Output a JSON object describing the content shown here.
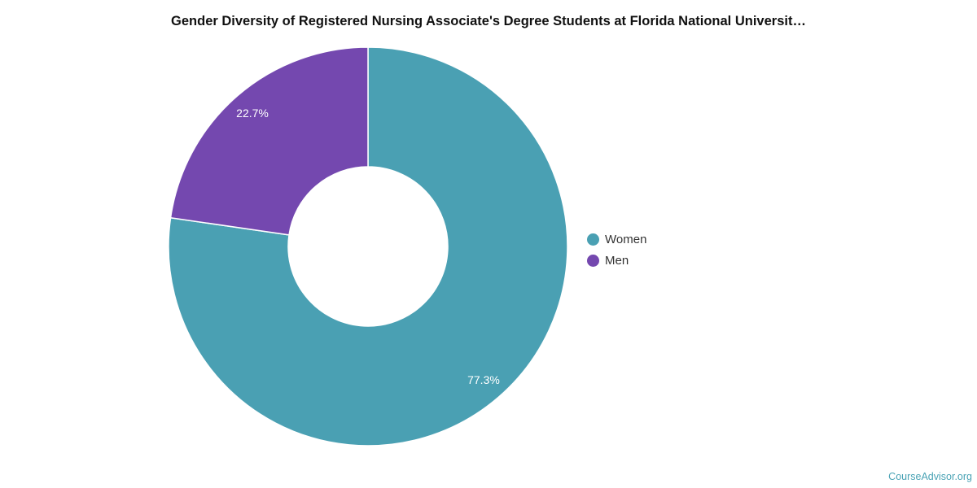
{
  "chart_data": {
    "type": "pie",
    "title": "Gender Diversity of Registered Nursing Associate's Degree Students at Florida National Universit…",
    "categories": [
      "Women",
      "Men"
    ],
    "values": [
      77.3,
      22.7
    ],
    "labels": [
      "77.3%",
      "22.7%"
    ],
    "colors": [
      "#4aa0b3",
      "#7448af"
    ],
    "donut": true,
    "legend_position": "right"
  },
  "watermark": "CourseAdvisor.org"
}
